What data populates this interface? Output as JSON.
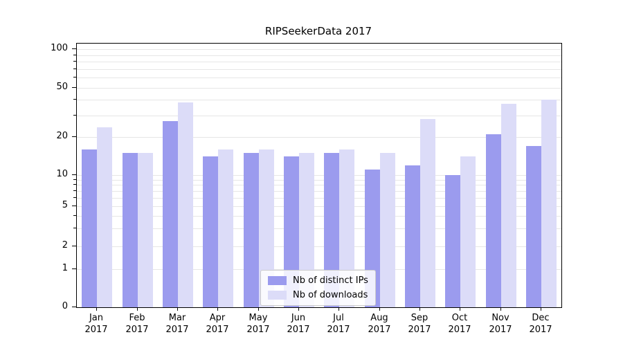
{
  "title": "RIPSeekerData 2017",
  "colors": {
    "distinct_ips": "#9b9bee",
    "downloads": "#dcdcf8",
    "grid": "#e6e6e6",
    "axis": "#000000",
    "legend_border": "#cccccc"
  },
  "y_axis": {
    "tick_values": [
      0,
      1,
      2,
      5,
      10,
      20,
      50,
      100
    ],
    "tick_labels": [
      "0",
      "1",
      "2",
      "5",
      "10",
      "20",
      "50",
      "100"
    ]
  },
  "legend": {
    "items": [
      {
        "label": "Nb of distinct IPs",
        "color": "#9b9bee"
      },
      {
        "label": "Nb of downloads",
        "color": "#dcdcf8"
      }
    ]
  },
  "chart_data": {
    "type": "bar",
    "title": "RIPSeekerData 2017",
    "categories": [
      "Jan 2017",
      "Feb 2017",
      "Mar 2017",
      "Apr 2017",
      "May 2017",
      "Jun 2017",
      "Jul 2017",
      "Aug 2017",
      "Sep 2017",
      "Oct 2017",
      "Nov 2017",
      "Dec 2017"
    ],
    "series": [
      {
        "name": "Nb of distinct IPs",
        "color": "#9b9bee",
        "values": [
          16,
          15,
          27,
          14,
          15,
          14,
          15,
          11,
          12,
          10,
          21,
          17
        ]
      },
      {
        "name": "Nb of downloads",
        "color": "#dcdcf8",
        "values": [
          24,
          15,
          38,
          16,
          16,
          15,
          16,
          15,
          28,
          14,
          37,
          40
        ]
      }
    ],
    "xlabel": "",
    "ylabel": "",
    "yscale": "symlog",
    "ylim": [
      0,
      100
    ],
    "y_ticks": [
      0,
      1,
      2,
      5,
      10,
      20,
      50,
      100
    ],
    "grid": "horizontal",
    "legend_position": "lower-center-inside"
  }
}
